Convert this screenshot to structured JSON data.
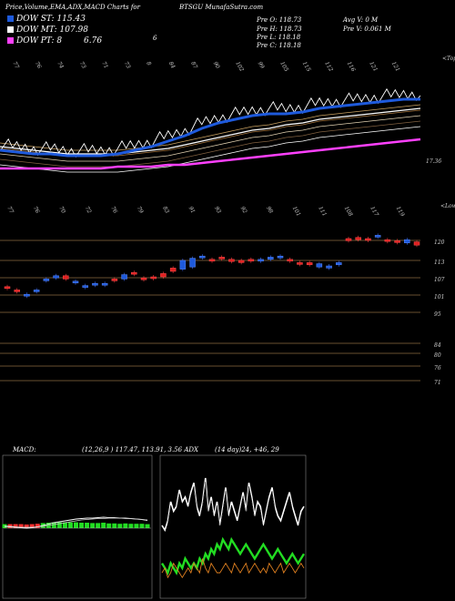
{
  "header": {
    "title_left": "Price,Volume,EMA,ADX,MACD Charts for",
    "title_right": "BTSGU MunafaSutra.com"
  },
  "legend": {
    "st_label": "DOW ST: 115.43",
    "mt_label": "DOW MT: 107.98",
    "pt_label": "DOW PT: 8",
    "pt_value": "6.76",
    "extra": "6",
    "st_color": "#1e5adc",
    "mt_color": "#ffffff",
    "pt_color": "#ff40ff"
  },
  "ohlc": {
    "o": "Pre  O: 118.73",
    "h": "Pre  H: 118.73",
    "l": "Pre  L: 118.18",
    "c": "Pre  C: 118.18",
    "avgv": "Avg V: 0  M",
    "prev": "Pre  V: 0.061 M"
  },
  "ema_chart": {
    "top_labels": [
      "77",
      "76",
      "74",
      "73",
      "71",
      "73",
      "8",
      "84",
      "87",
      "90",
      "102",
      "99",
      "105",
      "115",
      "112",
      "116",
      "121",
      "121"
    ],
    "right_label": "<Tops",
    "price_label": "17.36"
  },
  "candle_chart": {
    "top_labels": [
      "77",
      "76",
      "70",
      "72",
      "76",
      "79",
      "83",
      "91",
      "93",
      "92",
      "98",
      "101",
      "111",
      "108",
      "117",
      "119"
    ],
    "right_label": "<Lows",
    "y_labels": [
      "120",
      "113",
      "107",
      "101",
      "95",
      "84",
      "80",
      "76",
      "71"
    ]
  },
  "macd": {
    "label": "MACD:",
    "values": "(12,26,9 ) 117.47,  113.91, 3.56  ADX",
    "adx": "(14  day)24,  +46,  29"
  },
  "chart_data": [
    {
      "type": "line",
      "title": "",
      "series": [
        {
          "name": "DOW ST",
          "values": [
            110,
            109,
            108,
            108,
            107,
            107,
            107,
            108,
            110,
            112,
            115,
            118,
            122,
            125,
            127,
            129,
            130,
            130,
            131,
            133,
            134,
            135,
            136,
            137,
            138,
            138
          ]
        },
        {
          "name": "DOW MT",
          "values": [
            112,
            111,
            110,
            109,
            108,
            108,
            108,
            108,
            109,
            110,
            111,
            113,
            115,
            117,
            119,
            121,
            122,
            124,
            125,
            127,
            128,
            129,
            130,
            131,
            132,
            133
          ]
        },
        {
          "name": "DOW PT",
          "values": [
            100,
            100,
            100,
            100,
            100,
            100,
            100,
            101,
            101,
            101,
            102,
            102,
            103,
            104,
            105,
            106,
            107,
            108,
            109,
            110,
            111,
            112,
            113,
            114,
            115,
            116
          ]
        }
      ]
    },
    {
      "type": "bar",
      "title": "",
      "candles": [
        {
          "o": 96,
          "c": 95,
          "up": false
        },
        {
          "o": 93,
          "c": 92,
          "up": false
        },
        {
          "o": 89,
          "c": 88,
          "up": true
        },
        {
          "o": 93,
          "c": 92,
          "up": true
        },
        {
          "o": 103,
          "c": 102,
          "up": true
        },
        {
          "o": 104,
          "c": 106,
          "up": true
        },
        {
          "o": 106,
          "c": 103,
          "up": false
        },
        {
          "o": 101,
          "c": 100,
          "up": true
        },
        {
          "o": 96,
          "c": 97,
          "up": true
        },
        {
          "o": 99,
          "c": 98,
          "up": true
        },
        {
          "o": 99,
          "c": 98,
          "up": true
        },
        {
          "o": 102,
          "c": 103,
          "up": false
        },
        {
          "o": 107,
          "c": 103,
          "up": true
        },
        {
          "o": 109,
          "c": 108,
          "up": false
        },
        {
          "o": 103,
          "c": 104,
          "up": false
        },
        {
          "o": 104,
          "c": 105,
          "up": false
        },
        {
          "o": 108,
          "c": 105,
          "up": false
        },
        {
          "o": 113,
          "c": 110,
          "up": false
        },
        {
          "o": 120,
          "c": 112,
          "up": true
        },
        {
          "o": 122,
          "c": 114,
          "up": true
        },
        {
          "o": 124,
          "c": 123,
          "up": true
        },
        {
          "o": 120,
          "c": 121,
          "up": false
        },
        {
          "o": 123,
          "c": 122,
          "up": false
        },
        {
          "o": 121,
          "c": 119,
          "up": false
        },
        {
          "o": 120,
          "c": 118,
          "up": false
        },
        {
          "o": 121,
          "c": 120,
          "up": false
        },
        {
          "o": 121,
          "c": 120,
          "up": true
        },
        {
          "o": 123,
          "c": 121,
          "up": true
        },
        {
          "o": 124,
          "c": 123,
          "up": true
        },
        {
          "o": 121,
          "c": 120,
          "up": false
        },
        {
          "o": 118,
          "c": 117,
          "up": false
        },
        {
          "o": 118,
          "c": 116,
          "up": false
        },
        {
          "o": 117,
          "c": 114,
          "up": true
        },
        {
          "o": 115,
          "c": 113,
          "up": true
        },
        {
          "o": 118,
          "c": 116,
          "up": true
        },
        {
          "o": 140,
          "c": 138,
          "up": false
        },
        {
          "o": 141,
          "c": 139,
          "up": false
        },
        {
          "o": 140,
          "c": 139,
          "up": false
        },
        {
          "o": 143,
          "c": 142,
          "up": true
        },
        {
          "o": 139,
          "c": 138,
          "up": false
        },
        {
          "o": 138,
          "c": 137,
          "up": false
        },
        {
          "o": 139,
          "c": 136,
          "up": true
        },
        {
          "o": 137,
          "c": 134,
          "up": false
        }
      ]
    },
    {
      "type": "line",
      "title": "",
      "series": [
        {
          "name": "MACD",
          "values": [
            0.4,
            0.3,
            0.2,
            0.1,
            0.0,
            0.1,
            0.3,
            0.6,
            0.9,
            1.2,
            1.4,
            1.6,
            1.8,
            2.0,
            2.1,
            2.2,
            2.2,
            2.3,
            2.4,
            2.3,
            2.3,
            2.2,
            2.2,
            2.1,
            2.0,
            1.9,
            1.7
          ]
        },
        {
          "name": "Signal",
          "values": [
            0.5,
            0.4,
            0.3,
            0.2,
            0.2,
            0.2,
            0.3,
            0.4,
            0.6,
            0.8,
            1.0,
            1.2,
            1.4,
            1.6,
            1.8,
            1.9,
            2.0,
            2.1,
            2.1,
            2.2,
            2.2,
            2.2,
            2.1,
            2.1,
            2.0,
            1.9,
            1.8
          ]
        }
      ]
    },
    {
      "type": "line",
      "title": "",
      "series": [
        {
          "name": "+DI",
          "values": [
            30,
            28,
            32,
            40,
            36,
            38,
            45,
            40,
            42,
            38,
            44,
            48,
            38,
            34,
            40,
            50,
            36,
            42,
            34,
            40,
            30,
            38,
            46,
            34,
            40,
            36,
            32,
            38,
            44,
            36,
            48,
            42,
            34,
            40,
            38,
            30,
            36,
            42,
            46,
            38,
            34,
            32,
            36,
            40,
            44,
            38,
            34,
            30,
            36,
            38
          ]
        },
        {
          "name": "-DI",
          "values": [
            10,
            12,
            8,
            10,
            14,
            12,
            10,
            8,
            10,
            12,
            10,
            14,
            12,
            10,
            16,
            12,
            10,
            14,
            12,
            10,
            10,
            12,
            14,
            12,
            10,
            14,
            12,
            10,
            12,
            14,
            10,
            12,
            14,
            12,
            10,
            12,
            10,
            14,
            12,
            10,
            12,
            14,
            10,
            12,
            14,
            12,
            10,
            12,
            14,
            12
          ]
        },
        {
          "name": "ADX",
          "values": [
            14,
            12,
            10,
            14,
            12,
            10,
            14,
            12,
            16,
            14,
            12,
            14,
            12,
            16,
            14,
            18,
            16,
            20,
            18,
            22,
            20,
            24,
            22,
            20,
            24,
            22,
            20,
            18,
            20,
            22,
            20,
            18,
            16,
            18,
            20,
            22,
            20,
            18,
            16,
            18,
            20,
            18,
            16,
            14,
            16,
            18,
            16,
            14,
            16,
            18
          ]
        }
      ]
    }
  ]
}
